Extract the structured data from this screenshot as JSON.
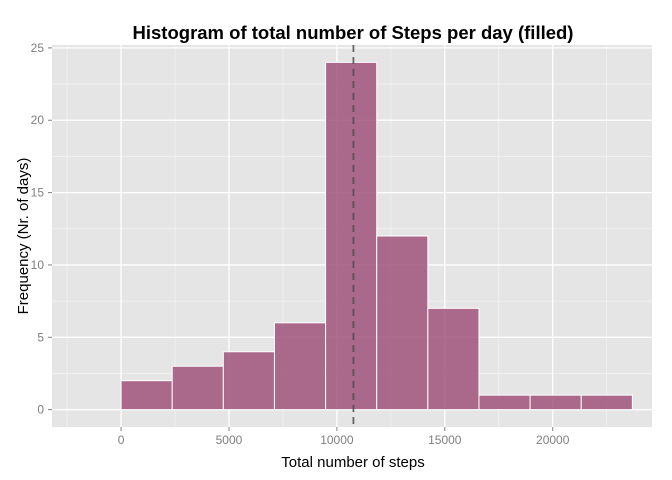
{
  "chart_data": {
    "type": "bar",
    "title": "Histogram of total number of Steps per day (filled)",
    "xlabel": "Total number of steps",
    "ylabel": "Frequency (Nr. of days)",
    "xlim": [
      -3200,
      24600
    ],
    "ylim": [
      -1.2,
      25.2
    ],
    "xticks": [
      0,
      5000,
      10000,
      15000,
      20000
    ],
    "yticks": [
      0,
      5,
      10,
      15,
      20,
      25
    ],
    "bin_width": 2369,
    "bins": [
      {
        "start": 0,
        "end": 2369,
        "count": 2
      },
      {
        "start": 2369,
        "end": 4738,
        "count": 3
      },
      {
        "start": 4738,
        "end": 7107,
        "count": 4
      },
      {
        "start": 7107,
        "end": 9476,
        "count": 6
      },
      {
        "start": 9476,
        "end": 11845,
        "count": 24
      },
      {
        "start": 11845,
        "end": 14214,
        "count": 12
      },
      {
        "start": 14214,
        "end": 16583,
        "count": 7
      },
      {
        "start": 16583,
        "end": 18952,
        "count": 1
      },
      {
        "start": 18952,
        "end": 21321,
        "count": 1
      },
      {
        "start": 21321,
        "end": 23690,
        "count": 1
      }
    ],
    "mean_line": 10766,
    "grid": true,
    "colors": {
      "panel": "#e5e5e5",
      "grid_major": "#ffffff",
      "bar_fill": "#a0527a",
      "bar_stroke": "#ffffff",
      "mean_line": "#4d4d4d"
    }
  }
}
